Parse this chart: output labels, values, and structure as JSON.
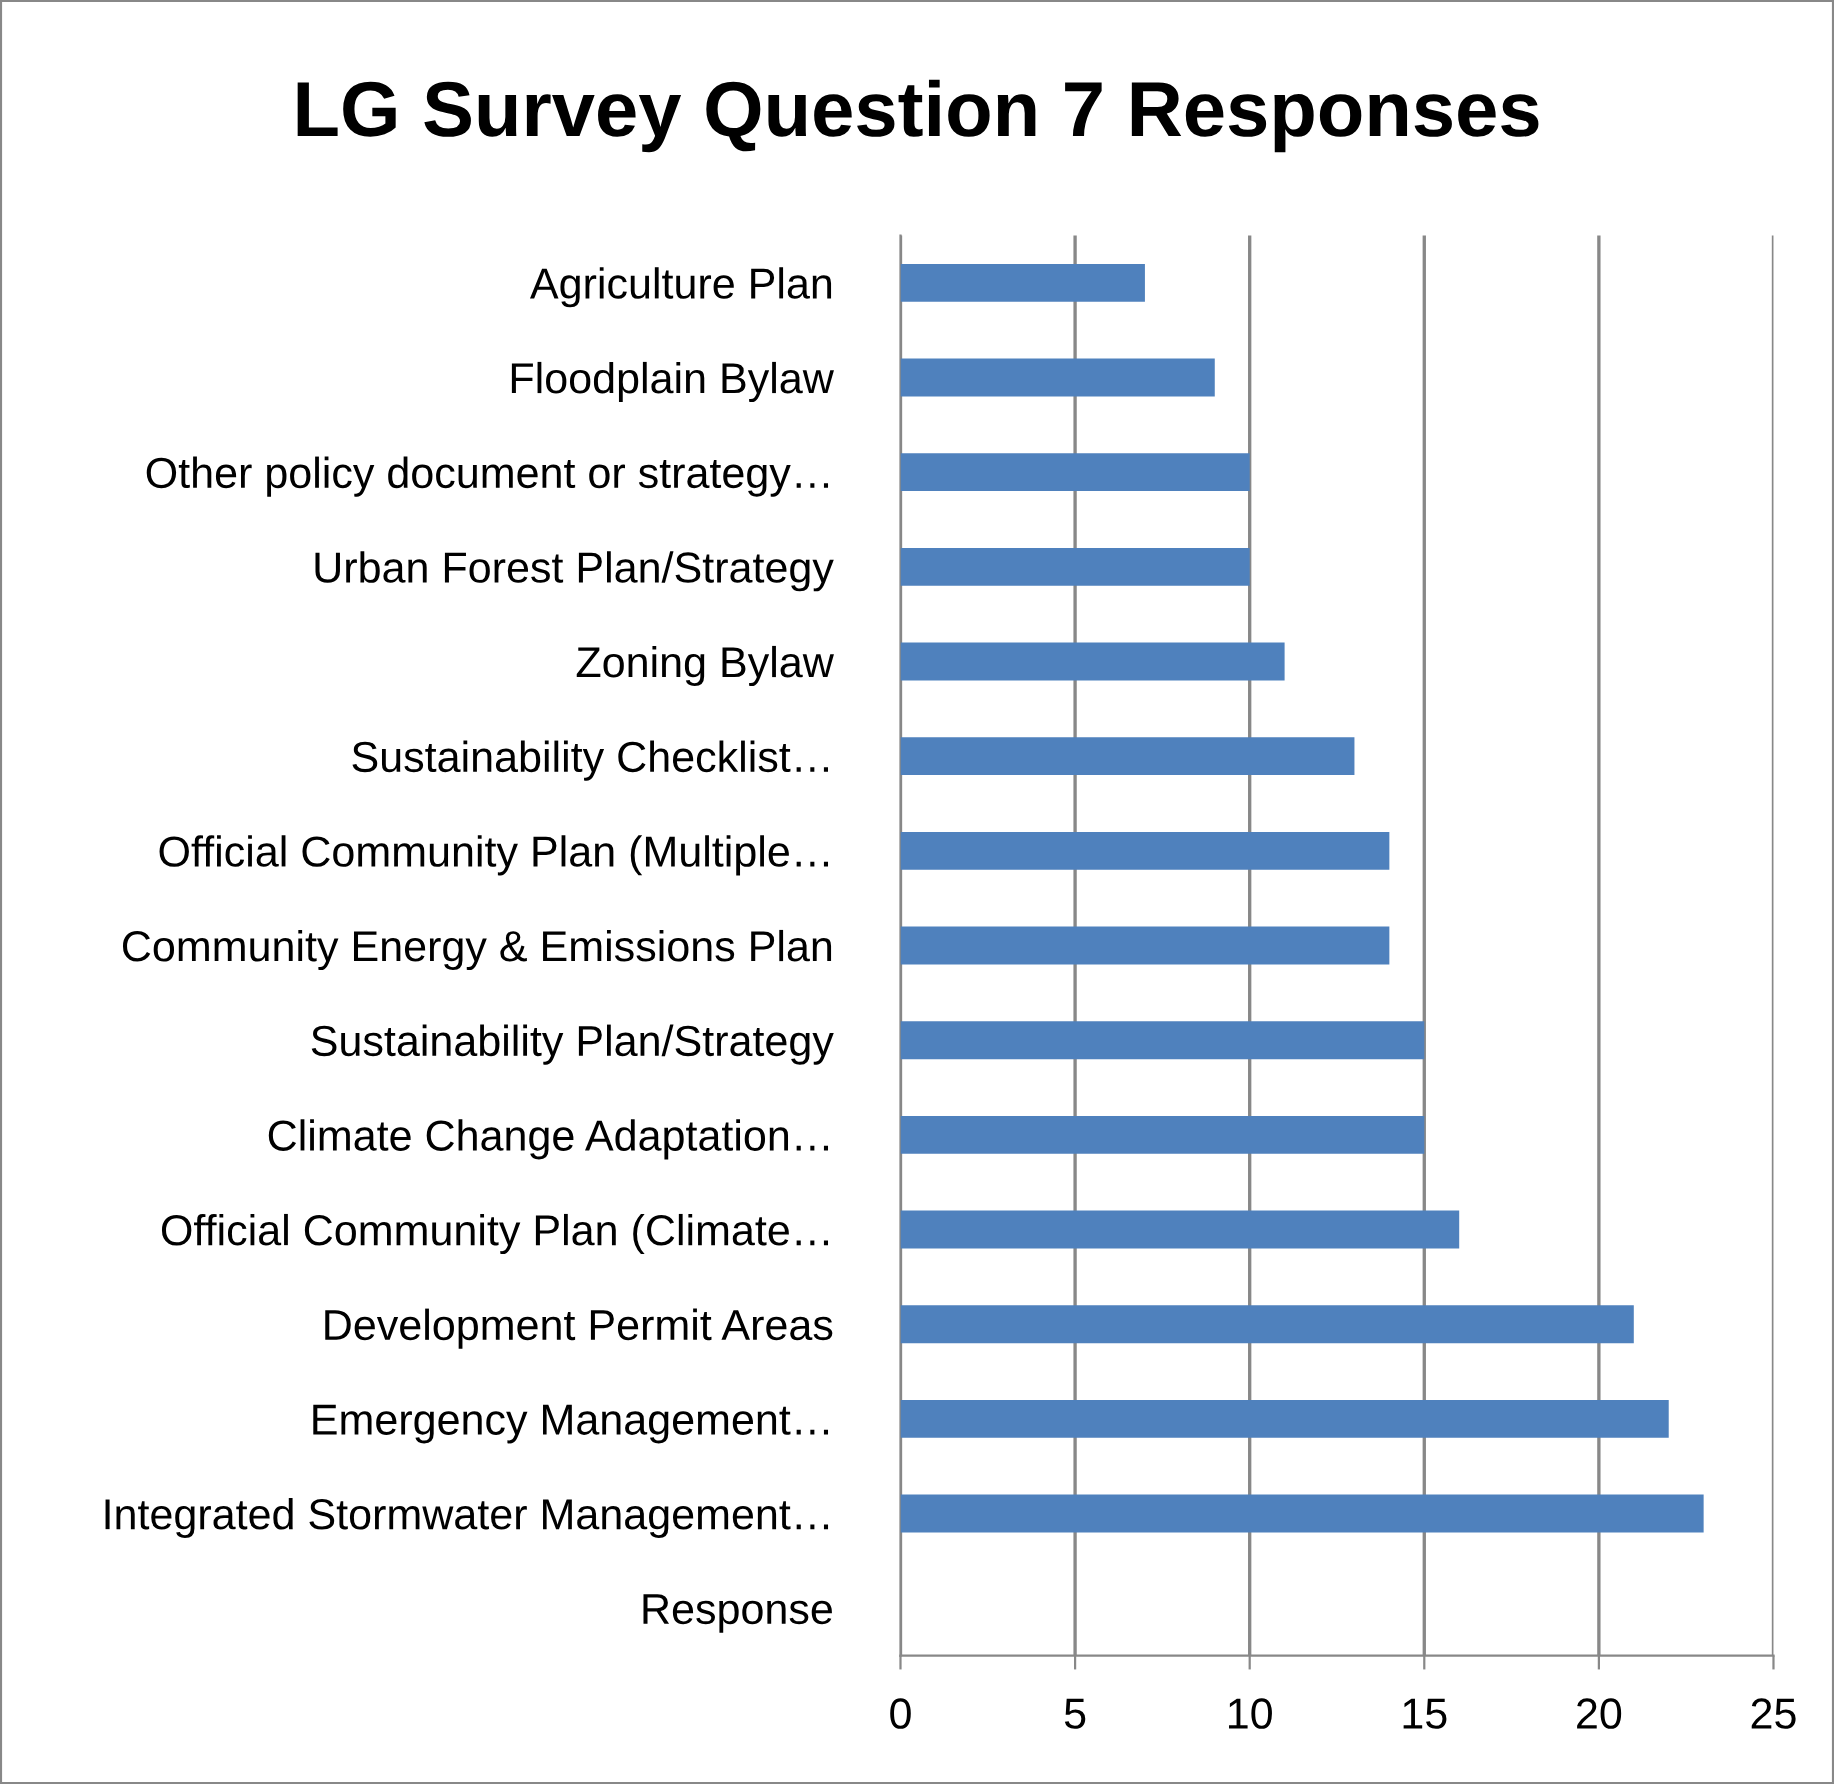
{
  "chart_data": {
    "type": "bar",
    "orientation": "horizontal",
    "title": "LG Survey Question 7 Responses",
    "categories": [
      "Agriculture Plan",
      "Floodplain Bylaw",
      "Other policy document or strategy…",
      "Urban Forest Plan/Strategy",
      "Zoning Bylaw",
      "Sustainability Checklist…",
      "Official Community Plan (Multiple…",
      "Community Energy & Emissions Plan",
      "Sustainability Plan/Strategy",
      "Climate Change Adaptation…",
      "Official Community Plan (Climate…",
      "Development Permit Areas",
      "Emergency Management…",
      "Integrated Stormwater Management…",
      "Response"
    ],
    "values": [
      7,
      9,
      10,
      10,
      11,
      13,
      14,
      14,
      15,
      15,
      16,
      21,
      22,
      23,
      null
    ],
    "color": "#4f81bd",
    "xlim": [
      0,
      25
    ],
    "xticks": [
      0,
      5,
      10,
      15,
      20,
      25
    ],
    "grid": "x",
    "legend": false
  }
}
